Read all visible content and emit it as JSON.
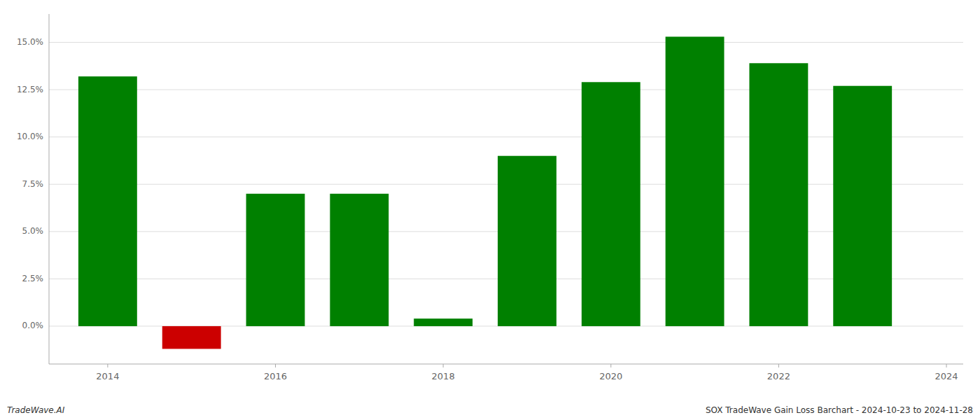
{
  "chart_data": {
    "type": "bar",
    "x": [
      2014,
      2015,
      2016,
      2017,
      2018,
      2019,
      2020,
      2021,
      2022,
      2023
    ],
    "values": [
      0.132,
      -0.012,
      0.07,
      0.07,
      0.004,
      0.09,
      0.129,
      0.153,
      0.139,
      0.127
    ],
    "colors": [
      "#008000",
      "#cc0000",
      "#008000",
      "#008000",
      "#008000",
      "#008000",
      "#008000",
      "#008000",
      "#008000",
      "#008000"
    ],
    "xlim": [
      2013.3,
      2024.2
    ],
    "xticks": [
      2014,
      2016,
      2018,
      2020,
      2022,
      2024
    ],
    "ylim": [
      -0.02,
      0.165
    ],
    "yticks": [
      {
        "value": 0.0,
        "label": "0.0%"
      },
      {
        "value": 0.025,
        "label": "2.5%"
      },
      {
        "value": 0.05,
        "label": "5.0%"
      },
      {
        "value": 0.075,
        "label": "7.5%"
      },
      {
        "value": 0.1,
        "label": "10.0%"
      },
      {
        "value": 0.125,
        "label": "12.5%"
      },
      {
        "value": 0.15,
        "label": "15.0%"
      }
    ],
    "grid": true,
    "annotations": [
      "TradeWave.AI",
      "SOX TradeWave Gain Loss Barchart - 2024-10-23 to 2024-11-28"
    ]
  }
}
